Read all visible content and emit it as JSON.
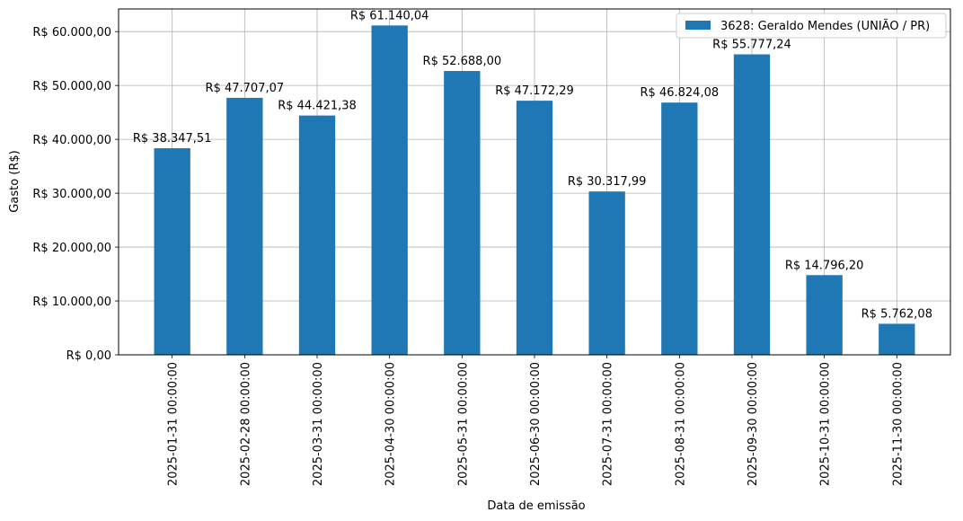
{
  "chart_data": {
    "type": "bar",
    "xlabel": "Data de emissão",
    "ylabel": "Gasto (R$)",
    "ylim": [
      0,
      64200
    ],
    "grid": true,
    "legend_position": "top-right",
    "series": [
      {
        "name": "3628: Geraldo Mendes (UNIÃO / PR)",
        "color": "#1f77b4",
        "values": [
          38347.51,
          47707.07,
          44421.38,
          61140.04,
          52688.0,
          47172.29,
          30317.99,
          46824.08,
          55777.24,
          14796.2,
          5762.08
        ],
        "value_labels": [
          "R$ 38.347,51",
          "R$ 47.707,07",
          "R$ 44.421,38",
          "R$ 61.140,04",
          "R$ 52.688,00",
          "R$ 47.172,29",
          "R$ 30.317,99",
          "R$ 46.824,08",
          "R$ 55.777,24",
          "R$ 14.796,20",
          "R$ 5.762,08"
        ]
      }
    ],
    "categories": [
      "2025-01-31 00:00:00",
      "2025-02-28 00:00:00",
      "2025-03-31 00:00:00",
      "2025-04-30 00:00:00",
      "2025-05-31 00:00:00",
      "2025-06-30 00:00:00",
      "2025-07-31 00:00:00",
      "2025-08-31 00:00:00",
      "2025-09-30 00:00:00",
      "2025-10-31 00:00:00",
      "2025-11-30 00:00:00"
    ],
    "yticks": [
      0,
      10000,
      20000,
      30000,
      40000,
      50000,
      60000
    ],
    "ytick_labels": [
      "R$ 0,00",
      "R$ 10.000,00",
      "R$ 20.000,00",
      "R$ 30.000,00",
      "R$ 40.000,00",
      "R$ 50.000,00",
      "R$ 60.000,00"
    ]
  }
}
